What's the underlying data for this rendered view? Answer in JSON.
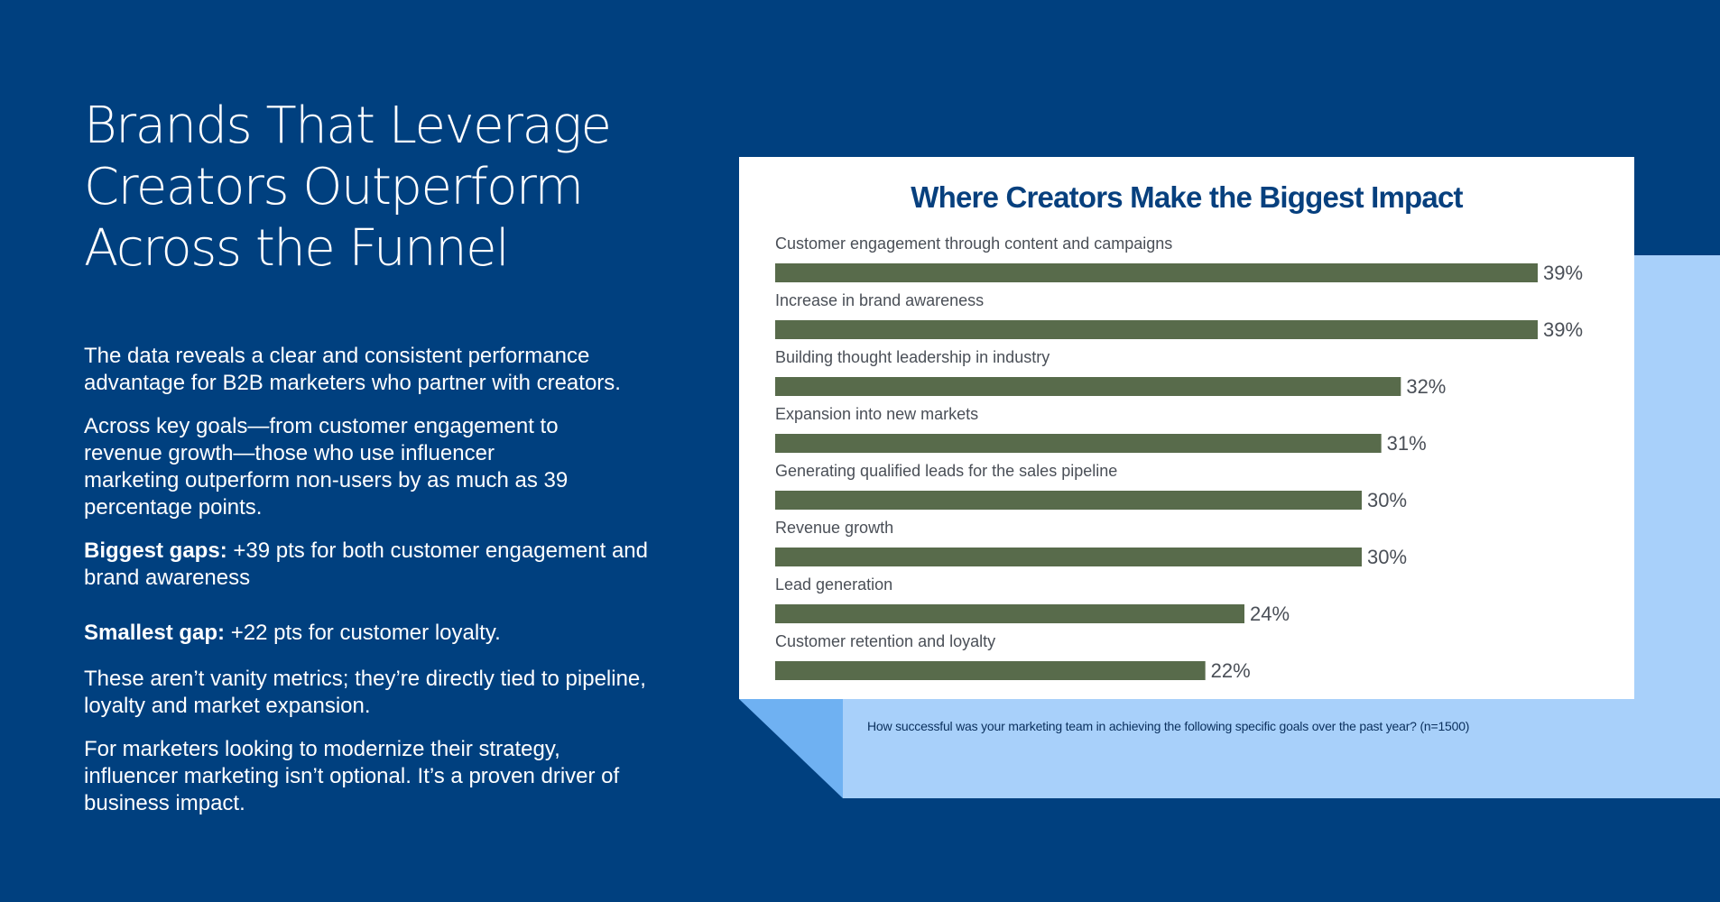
{
  "headline": {
    "lines": [
      "Brands That Leverage",
      "Creators Outperform",
      "Across the Funnel"
    ]
  },
  "body": {
    "p1": "The data reveals a clear and consistent performance advantage for B2B marketers who partner with creators.",
    "p2": "Across key goals—from customer engagement to revenue growth—those who use influencer marketing outperform non-users by as much as 39 percentage points.",
    "p3_label": "Biggest gaps:",
    "p3_text": " +39 pts for both customer engagement and brand awareness",
    "p4_label": "Smallest gap:",
    "p4_text": " +22 pts for customer loyalty.",
    "p5": "These aren’t vanity metrics; they’re directly tied to pipeline, loyalty and market expansion.",
    "p6": "For marketers looking to modernize their strategy, influencer marketing isn’t optional. It’s a proven driver of business impact."
  },
  "footnote": "How successful was your marketing team in achieving the following specific goals over the past year? (n=1500)",
  "colors": {
    "background": "#00407f",
    "bar": "#586b4b",
    "title": "#07407e",
    "accent_light": "#a8d0fa",
    "accent_mid": "#6fb1f2"
  },
  "chart_data": {
    "type": "bar",
    "orientation": "horizontal",
    "title": "Where Creators Make the Biggest Impact",
    "categories": [
      "Customer engagement through content and campaigns",
      "Increase in brand awareness",
      "Building thought leadership in industry",
      "Expansion into new markets",
      "Generating qualified leads for the sales pipeline",
      "Revenue growth",
      "Lead generation",
      "Customer retention and loyalty"
    ],
    "values": [
      39,
      39,
      32,
      31,
      30,
      30,
      24,
      22
    ],
    "value_labels": [
      "39%",
      "39%",
      "32%",
      "31%",
      "30%",
      "30%",
      "24%",
      "22%"
    ],
    "unit": "%",
    "grid": false,
    "legend": false
  }
}
